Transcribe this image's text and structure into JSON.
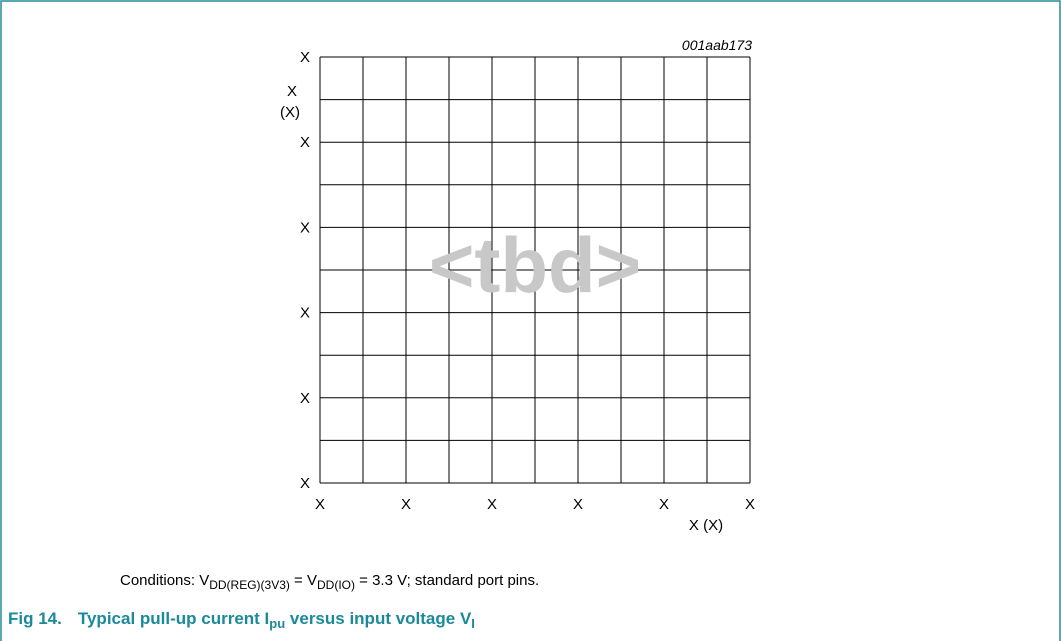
{
  "figure": {
    "code": "001aab173",
    "watermark": "<tbd>",
    "y_axis": {
      "title": [
        "X",
        "(X)"
      ],
      "ticks": [
        "X",
        "X",
        "X",
        "X",
        "X",
        "X"
      ]
    },
    "x_axis": {
      "title": "X (X)",
      "ticks": [
        "X",
        "X",
        "X",
        "X",
        "X",
        "X"
      ]
    },
    "conditions": [
      "Conditions: V",
      "DD(REG)(3V3)",
      " = V",
      "DD(IO)",
      " = 3.3 V; standard port pins."
    ],
    "caption": {
      "number": "Fig 14.",
      "parts": [
        "Typical pull-up current I",
        "pu",
        " versus input voltage V",
        "I"
      ]
    }
  }
}
